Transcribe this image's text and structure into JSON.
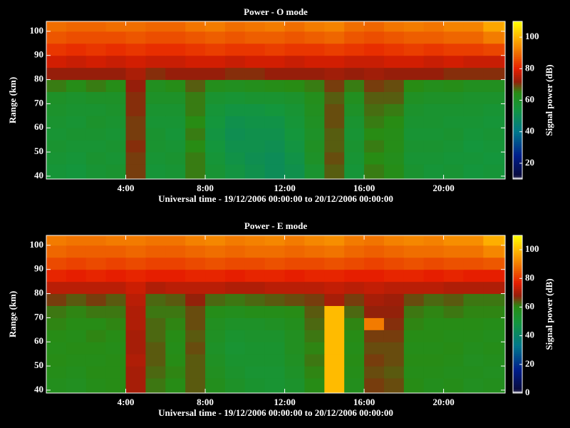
{
  "chart_data": [
    {
      "type": "heatmap",
      "title": "Power - O mode",
      "xlabel": "Universal time - 19/12/2006 00:00:00 to 20/12/2006 00:00:00",
      "ylabel": "Range (km)",
      "zlabel": "Signal power (dB)",
      "x": [
        0,
        1,
        2,
        3,
        4,
        5,
        6,
        7,
        8,
        9,
        10,
        11,
        12,
        13,
        14,
        15,
        16,
        17,
        18,
        19,
        20,
        21,
        22,
        23,
        23.1
      ],
      "y": [
        38.8,
        45,
        50,
        55,
        60,
        65,
        70,
        75,
        80,
        85,
        90,
        95,
        100,
        104.1
      ],
      "z": [
        [
          56,
          55,
          57,
          58,
          70,
          56,
          57,
          66,
          57,
          54,
          52,
          50,
          52,
          58,
          68,
          56,
          66,
          64,
          58,
          56,
          57,
          55,
          56,
          54
        ],
        [
          57,
          56,
          58,
          57,
          70,
          57,
          58,
          66,
          56,
          53,
          51,
          50,
          53,
          60,
          69,
          57,
          65,
          63,
          57,
          57,
          56,
          56,
          55,
          55
        ],
        [
          58,
          57,
          57,
          58,
          71,
          58,
          57,
          65,
          55,
          52,
          52,
          51,
          54,
          61,
          68,
          58,
          66,
          64,
          58,
          58,
          57,
          55,
          56,
          56
        ],
        [
          57,
          58,
          58,
          57,
          70,
          58,
          56,
          66,
          54,
          51,
          52,
          52,
          55,
          60,
          68,
          57,
          65,
          64,
          57,
          57,
          58,
          56,
          57,
          55
        ],
        [
          58,
          57,
          59,
          58,
          70,
          57,
          57,
          65,
          55,
          52,
          53,
          53,
          56,
          61,
          69,
          58,
          66,
          65,
          58,
          58,
          57,
          57,
          56,
          56
        ],
        [
          59,
          58,
          58,
          59,
          71,
          58,
          58,
          66,
          56,
          54,
          54,
          55,
          57,
          62,
          69,
          60,
          67,
          66,
          59,
          58,
          58,
          58,
          57,
          57
        ],
        [
          60,
          59,
          60,
          60,
          71,
          60,
          60,
          66,
          58,
          57,
          58,
          58,
          59,
          63,
          68,
          62,
          68,
          68,
          61,
          60,
          60,
          59,
          59,
          58
        ],
        [
          66,
          64,
          66,
          64,
          72,
          62,
          64,
          68,
          63,
          62,
          63,
          64,
          65,
          66,
          70,
          66,
          70,
          69,
          65,
          63,
          64,
          62,
          62,
          62
        ],
        [
          72,
          72,
          72,
          72,
          74,
          71,
          72,
          72,
          72,
          71,
          71,
          72,
          72,
          72,
          73,
          72,
          73,
          72,
          72,
          72,
          71,
          71,
          71,
          71
        ],
        [
          78,
          77,
          78,
          77,
          78,
          77,
          77,
          78,
          78,
          77,
          78,
          78,
          77,
          78,
          78,
          77,
          77,
          78,
          78,
          77,
          78,
          77,
          77,
          78
        ],
        [
          83,
          82,
          83,
          82,
          83,
          82,
          82,
          83,
          84,
          83,
          83,
          84,
          83,
          83,
          84,
          83,
          82,
          83,
          84,
          83,
          84,
          84,
          85,
          86
        ],
        [
          87,
          86,
          86,
          86,
          87,
          86,
          86,
          87,
          88,
          87,
          88,
          88,
          87,
          88,
          89,
          87,
          86,
          87,
          88,
          88,
          89,
          89,
          92,
          94
        ],
        [
          90,
          89,
          89,
          90,
          90,
          89,
          89,
          91,
          92,
          90,
          91,
          92,
          90,
          92,
          93,
          90,
          89,
          91,
          92,
          91,
          93,
          93,
          98,
          100
        ]
      ],
      "xlim": [
        0,
        23.1
      ],
      "ylim": [
        38.8,
        104.1
      ],
      "zlim": [
        10,
        110
      ],
      "xticks": [
        {
          "value": 4,
          "label": "4:00"
        },
        {
          "value": 8,
          "label": "8:00"
        },
        {
          "value": 12,
          "label": "12:00"
        },
        {
          "value": 16,
          "label": "16:00"
        },
        {
          "value": 20,
          "label": "20:00"
        }
      ],
      "yticks": [
        40,
        50,
        60,
        70,
        80,
        90,
        100
      ],
      "zticks": [
        20,
        40,
        60,
        80,
        100
      ]
    },
    {
      "type": "heatmap",
      "title": "Power - E mode",
      "xlabel": "Universal time - 19/12/2006 00:00:00 to 20/12/2006 00:00:00",
      "ylabel": "Range (km)",
      "zlabel": "Signal power (dB)",
      "x": [
        0,
        1,
        2,
        3,
        4,
        5,
        6,
        7,
        8,
        9,
        10,
        11,
        12,
        13,
        14,
        15,
        16,
        17,
        18,
        19,
        20,
        21,
        22,
        23,
        23.1
      ],
      "y": [
        38.8,
        45,
        50,
        55,
        60,
        65,
        70,
        75,
        80,
        85,
        90,
        95,
        100,
        104.1
      ],
      "z": [
        [
          58,
          57,
          59,
          60,
          70,
          62,
          60,
          64,
          58,
          55,
          53,
          52,
          54,
          60,
          100,
          58,
          66,
          65,
          60,
          58,
          59,
          57,
          58,
          57
        ],
        [
          59,
          58,
          60,
          60,
          70,
          63,
          61,
          64,
          57,
          54,
          52,
          52,
          55,
          61,
          100,
          59,
          65,
          64,
          59,
          59,
          58,
          58,
          57,
          57
        ],
        [
          60,
          59,
          59,
          60,
          71,
          64,
          60,
          64,
          56,
          53,
          53,
          53,
          56,
          62,
          100,
          60,
          66,
          65,
          60,
          60,
          59,
          57,
          58,
          58
        ],
        [
          59,
          60,
          60,
          59,
          70,
          64,
          59,
          65,
          55,
          52,
          53,
          53,
          57,
          61,
          100,
          59,
          65,
          65,
          59,
          59,
          60,
          58,
          59,
          57
        ],
        [
          60,
          59,
          61,
          60,
          70,
          63,
          60,
          64,
          56,
          53,
          54,
          54,
          57,
          62,
          100,
          60,
          66,
          66,
          60,
          60,
          59,
          59,
          58,
          58
        ],
        [
          61,
          60,
          60,
          61,
          71,
          63,
          61,
          65,
          57,
          55,
          55,
          56,
          58,
          63,
          100,
          61,
          90,
          67,
          61,
          60,
          60,
          60,
          59,
          59
        ],
        [
          62,
          61,
          62,
          62,
          71,
          62,
          62,
          65,
          59,
          58,
          59,
          59,
          60,
          64,
          100,
          63,
          68,
          68,
          62,
          61,
          62,
          61,
          61,
          60
        ],
        [
          66,
          64,
          66,
          64,
          72,
          63,
          64,
          68,
          63,
          62,
          63,
          64,
          65,
          66,
          70,
          66,
          70,
          69,
          65,
          63,
          64,
          62,
          62,
          62
        ],
        [
          72,
          72,
          72,
          72,
          74,
          71,
          72,
          72,
          72,
          71,
          71,
          72,
          72,
          72,
          73,
          72,
          73,
          72,
          72,
          72,
          71,
          71,
          71,
          71
        ],
        [
          78,
          77,
          78,
          77,
          78,
          77,
          77,
          78,
          78,
          77,
          78,
          78,
          77,
          78,
          78,
          77,
          77,
          78,
          78,
          77,
          78,
          77,
          77,
          78
        ],
        [
          83,
          82,
          83,
          82,
          83,
          82,
          82,
          83,
          84,
          83,
          83,
          84,
          83,
          83,
          84,
          83,
          82,
          83,
          84,
          83,
          84,
          84,
          85,
          86
        ],
        [
          87,
          86,
          86,
          86,
          87,
          86,
          86,
          87,
          88,
          87,
          88,
          88,
          87,
          88,
          89,
          87,
          86,
          87,
          88,
          88,
          89,
          89,
          92,
          94
        ],
        [
          90,
          89,
          89,
          90,
          90,
          89,
          89,
          91,
          92,
          90,
          91,
          92,
          90,
          92,
          93,
          90,
          89,
          91,
          92,
          91,
          93,
          93,
          98,
          100
        ]
      ],
      "xlim": [
        0,
        23.1
      ],
      "ylim": [
        38.8,
        104.1
      ],
      "zlim": [
        0,
        110
      ],
      "xticks": [
        {
          "value": 4,
          "label": "4:00"
        },
        {
          "value": 8,
          "label": "8:00"
        },
        {
          "value": 12,
          "label": "12:00"
        },
        {
          "value": 16,
          "label": "16:00"
        },
        {
          "value": 20,
          "label": "20:00"
        }
      ],
      "yticks": [
        40,
        50,
        60,
        70,
        80,
        90,
        100
      ],
      "zticks": [
        0,
        20,
        40,
        60,
        80,
        100
      ]
    }
  ]
}
